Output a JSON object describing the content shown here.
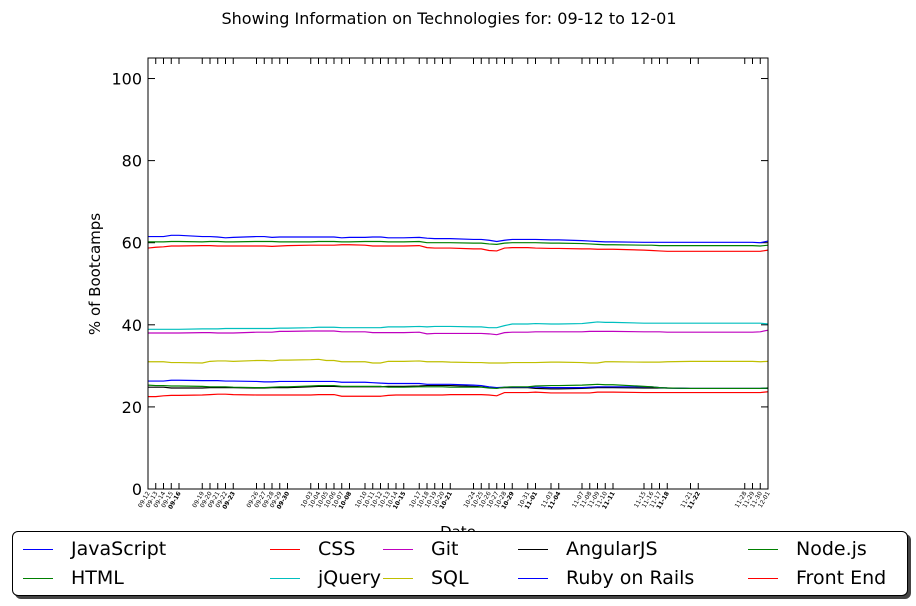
{
  "chart_data": {
    "type": "line",
    "title": "Showing Information on Technologies for: 09-12 to 12-01",
    "xlabel": "Date",
    "ylabel": "% of Bootcamps",
    "ylim": [
      0,
      105
    ],
    "yticks": [
      0,
      20,
      40,
      60,
      80,
      100
    ],
    "grid": false,
    "legend_position": "bottom",
    "x_tick_labels": [
      "09-12",
      "09-13",
      "09-14",
      "09-15",
      "09-16",
      "09-19",
      "09-20",
      "09-21",
      "09-22",
      "09-23",
      "09-26",
      "09-27",
      "09-28",
      "09-29",
      "09-30",
      "10-03",
      "10-04",
      "10-05",
      "10-06",
      "10-07",
      "10-08",
      "10-10",
      "10-11",
      "10-12",
      "10-13",
      "10-14",
      "10-15",
      "10-17",
      "10-18",
      "10-19",
      "10-20",
      "10-21",
      "10-24",
      "10-25",
      "10-26",
      "10-27",
      "10-28",
      "10-29",
      "10-31",
      "11-01",
      "11-03",
      "11-04",
      "11-07",
      "11-08",
      "11-09",
      "11-10",
      "11-11",
      "11-15",
      "11-16",
      "11-17",
      "11-18",
      "11-21",
      "11-22",
      "11-28",
      "11-29",
      "11-30",
      "12-01"
    ],
    "x_tick_days": [
      0,
      1,
      2,
      3,
      4,
      7,
      8,
      9,
      10,
      11,
      14,
      15,
      16,
      17,
      18,
      21,
      22,
      23,
      24,
      25,
      26,
      28,
      29,
      30,
      31,
      32,
      33,
      35,
      36,
      37,
      38,
      39,
      42,
      43,
      44,
      45,
      46,
      47,
      49,
      50,
      52,
      53,
      56,
      57,
      58,
      59,
      60,
      64,
      65,
      66,
      67,
      70,
      71,
      77,
      78,
      79,
      80
    ],
    "bold_tick_labels": [
      "09-16",
      "09-23",
      "09-30",
      "10-08",
      "10-15",
      "10-21",
      "10-29",
      "11-01",
      "11-04",
      "11-11",
      "11-18",
      "11-22"
    ],
    "series": [
      {
        "name": "JavaScript",
        "color": "#0000ff",
        "values": [
          61.5,
          61.5,
          61.5,
          61.8,
          61.8,
          61.5,
          61.5,
          61.4,
          61.2,
          61.3,
          61.5,
          61.5,
          61.3,
          61.4,
          61.4,
          61.4,
          61.4,
          61.4,
          61.4,
          61.2,
          61.3,
          61.3,
          61.4,
          61.4,
          61.2,
          61.2,
          61.2,
          61.3,
          61.1,
          61.0,
          61.0,
          61.0,
          60.8,
          60.8,
          60.6,
          60.3,
          60.6,
          60.8,
          60.8,
          60.8,
          60.7,
          60.7,
          60.5,
          60.4,
          60.3,
          60.2,
          60.2,
          60.1,
          60.1,
          60.1,
          60.1,
          60.1,
          60.1,
          60.1,
          60.1,
          60.0,
          60.4
        ]
      },
      {
        "name": "HTML",
        "color": "#008000",
        "values": [
          60.2,
          60.2,
          60.2,
          60.3,
          60.3,
          60.2,
          60.3,
          60.3,
          60.2,
          60.2,
          60.3,
          60.3,
          60.3,
          60.2,
          60.2,
          60.2,
          60.3,
          60.3,
          60.3,
          60.2,
          60.2,
          60.3,
          60.3,
          60.3,
          60.2,
          60.2,
          60.2,
          60.3,
          60.0,
          60.0,
          60.0,
          60.0,
          59.9,
          59.9,
          59.7,
          59.6,
          59.9,
          60.0,
          60.0,
          60.0,
          59.9,
          59.9,
          59.8,
          59.7,
          59.6,
          59.5,
          59.5,
          59.4,
          59.4,
          59.3,
          59.3,
          59.3,
          59.3,
          59.3,
          59.3,
          59.2,
          59.4
        ]
      },
      {
        "name": "CSS",
        "color": "#ff0000",
        "values": [
          58.7,
          58.9,
          59.0,
          59.2,
          59.2,
          59.3,
          59.3,
          59.2,
          59.2,
          59.2,
          59.2,
          59.2,
          59.1,
          59.2,
          59.3,
          59.4,
          59.4,
          59.4,
          59.4,
          59.5,
          59.5,
          59.4,
          59.2,
          59.2,
          59.2,
          59.2,
          59.2,
          59.3,
          58.8,
          58.7,
          58.7,
          58.7,
          58.5,
          58.5,
          58.1,
          58.0,
          58.7,
          58.8,
          58.8,
          58.7,
          58.6,
          58.6,
          58.5,
          58.5,
          58.4,
          58.4,
          58.4,
          58.2,
          58.1,
          58.0,
          57.9,
          57.9,
          57.9,
          57.9,
          57.9,
          57.9,
          58.2
        ]
      },
      {
        "name": "jQuery",
        "color": "#00bfbf",
        "values": [
          38.9,
          38.9,
          38.9,
          38.9,
          38.9,
          39.0,
          39.0,
          39.0,
          39.1,
          39.1,
          39.1,
          39.1,
          39.1,
          39.2,
          39.2,
          39.3,
          39.4,
          39.4,
          39.4,
          39.3,
          39.3,
          39.3,
          39.3,
          39.3,
          39.5,
          39.5,
          39.5,
          39.6,
          39.5,
          39.6,
          39.6,
          39.6,
          39.5,
          39.5,
          39.3,
          39.3,
          39.8,
          40.2,
          40.2,
          40.3,
          40.2,
          40.2,
          40.3,
          40.5,
          40.7,
          40.6,
          40.6,
          40.4,
          40.4,
          40.4,
          40.4,
          40.4,
          40.4,
          40.4,
          40.4,
          40.4,
          40.2
        ]
      },
      {
        "name": "Git",
        "color": "#bf00bf",
        "values": [
          38.0,
          38.0,
          38.0,
          38.0,
          38.0,
          38.1,
          38.1,
          38.0,
          38.0,
          38.0,
          38.2,
          38.2,
          38.2,
          38.4,
          38.4,
          38.5,
          38.5,
          38.5,
          38.5,
          38.3,
          38.3,
          38.3,
          38.1,
          38.1,
          38.1,
          38.1,
          38.1,
          38.2,
          37.8,
          37.9,
          37.9,
          37.9,
          37.9,
          37.9,
          37.8,
          37.6,
          38.1,
          38.2,
          38.2,
          38.3,
          38.3,
          38.3,
          38.3,
          38.4,
          38.4,
          38.4,
          38.4,
          38.3,
          38.3,
          38.3,
          38.2,
          38.2,
          38.2,
          38.2,
          38.2,
          38.3,
          38.7
        ]
      },
      {
        "name": "SQL",
        "color": "#bfbf00",
        "values": [
          31.0,
          31.0,
          31.0,
          30.8,
          30.8,
          30.7,
          31.1,
          31.2,
          31.2,
          31.1,
          31.3,
          31.3,
          31.2,
          31.4,
          31.4,
          31.5,
          31.6,
          31.3,
          31.3,
          31.0,
          31.0,
          31.0,
          30.7,
          30.7,
          31.1,
          31.1,
          31.1,
          31.2,
          31.0,
          31.0,
          31.0,
          30.9,
          30.8,
          30.8,
          30.7,
          30.7,
          30.7,
          30.8,
          30.8,
          30.8,
          30.9,
          30.9,
          30.8,
          30.7,
          30.7,
          31.0,
          31.0,
          30.9,
          30.9,
          30.9,
          31.0,
          31.1,
          31.1,
          31.1,
          31.1,
          31.0,
          31.1
        ]
      },
      {
        "name": "AngularJS",
        "color": "#000000",
        "values": [
          24.8,
          24.8,
          24.8,
          24.6,
          24.6,
          24.6,
          24.7,
          24.7,
          24.7,
          24.7,
          24.6,
          24.6,
          24.7,
          24.7,
          24.7,
          24.9,
          25.0,
          25.0,
          25.0,
          24.9,
          24.9,
          24.9,
          24.9,
          24.9,
          25.0,
          25.0,
          25.0,
          25.1,
          25.2,
          25.2,
          25.2,
          25.2,
          25.0,
          24.9,
          24.7,
          24.6,
          24.7,
          24.7,
          24.7,
          24.5,
          24.4,
          24.4,
          24.5,
          24.6,
          24.7,
          24.7,
          24.7,
          24.6,
          24.6,
          24.6,
          24.6,
          24.5,
          24.5,
          24.5,
          24.5,
          24.5,
          24.5
        ]
      },
      {
        "name": "Ruby on Rails",
        "color": "#0000ff",
        "values": [
          26.3,
          26.3,
          26.3,
          26.5,
          26.5,
          26.4,
          26.4,
          26.4,
          26.3,
          26.3,
          26.2,
          26.1,
          26.1,
          26.2,
          26.2,
          26.2,
          26.2,
          26.2,
          26.2,
          26.0,
          26.0,
          26.0,
          25.9,
          25.8,
          25.7,
          25.7,
          25.7,
          25.7,
          25.5,
          25.5,
          25.5,
          25.5,
          25.3,
          25.2,
          24.9,
          24.7,
          24.8,
          24.8,
          24.8,
          24.8,
          24.7,
          24.7,
          24.7,
          24.8,
          24.9,
          24.9,
          24.9,
          24.9,
          24.9,
          24.7,
          24.6,
          24.5,
          24.5,
          24.5,
          24.5,
          24.5,
          24.6
        ]
      },
      {
        "name": "Node.js",
        "color": "#008000",
        "values": [
          25.3,
          25.2,
          25.2,
          25.1,
          25.1,
          25.0,
          24.9,
          24.9,
          24.9,
          24.8,
          24.7,
          24.7,
          24.8,
          24.9,
          24.9,
          25.1,
          25.2,
          25.2,
          25.2,
          25.0,
          25.0,
          25.0,
          25.0,
          25.0,
          24.8,
          24.8,
          24.8,
          24.9,
          24.9,
          24.9,
          24.9,
          24.8,
          24.8,
          24.8,
          24.6,
          24.5,
          24.8,
          24.9,
          24.9,
          25.1,
          25.2,
          25.2,
          25.3,
          25.4,
          25.5,
          25.4,
          25.4,
          25.0,
          24.9,
          24.7,
          24.6,
          24.5,
          24.5,
          24.5,
          24.5,
          24.5,
          24.6
        ]
      },
      {
        "name": "Front End",
        "color": "#ff0000",
        "values": [
          22.5,
          22.5,
          22.7,
          22.8,
          22.8,
          22.9,
          23.0,
          23.1,
          23.1,
          23.0,
          22.9,
          22.9,
          22.9,
          22.9,
          22.9,
          22.9,
          23.0,
          23.0,
          23.0,
          22.6,
          22.6,
          22.6,
          22.6,
          22.6,
          22.8,
          22.9,
          22.9,
          22.9,
          22.9,
          22.9,
          22.9,
          23.0,
          23.0,
          23.0,
          22.9,
          22.7,
          23.5,
          23.5,
          23.5,
          23.6,
          23.4,
          23.4,
          23.4,
          23.4,
          23.6,
          23.6,
          23.6,
          23.5,
          23.5,
          23.5,
          23.5,
          23.5,
          23.5,
          23.5,
          23.5,
          23.5,
          23.7
        ]
      }
    ]
  }
}
